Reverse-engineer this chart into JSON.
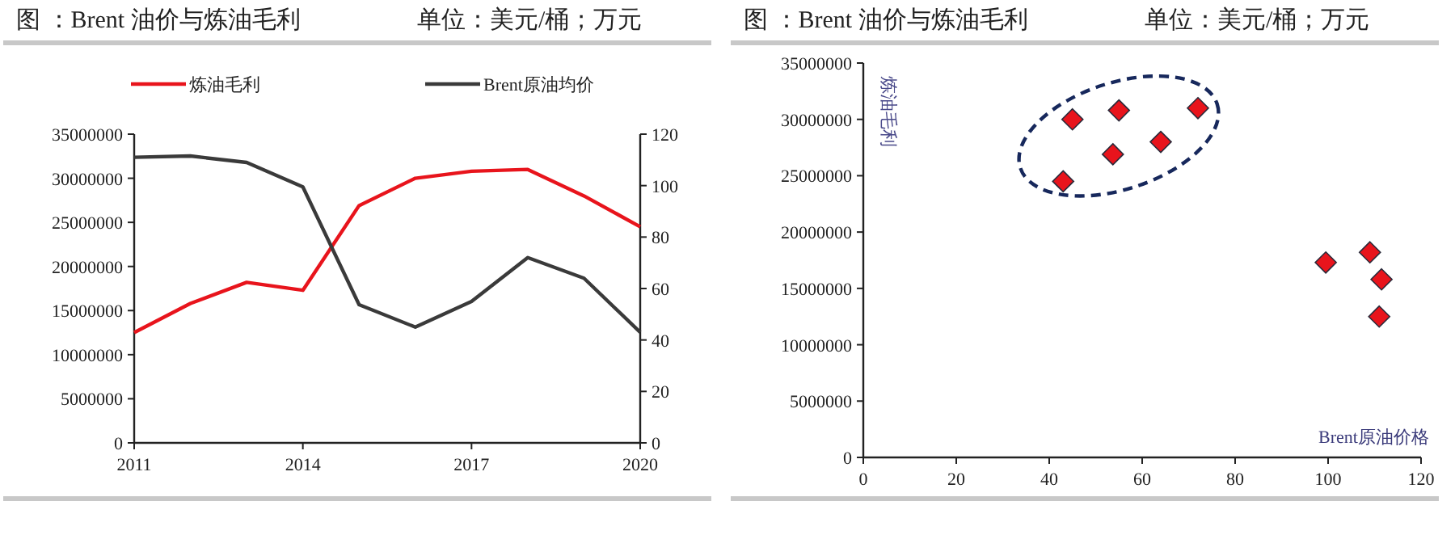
{
  "chart_data": [
    {
      "type": "line",
      "title": "图   ：Brent 油价与炼油毛利",
      "subtitle": "单位：美元/桶；万元",
      "x": [
        2011,
        2012,
        2013,
        2014,
        2015,
        2016,
        2017,
        2018,
        2019,
        2020
      ],
      "xlim": [
        2011,
        2020
      ],
      "xticks": [
        2011,
        2014,
        2017,
        2020
      ],
      "ylim": [
        0,
        35000000
      ],
      "yticks": [
        0,
        5000000,
        10000000,
        15000000,
        20000000,
        25000000,
        30000000,
        35000000
      ],
      "y2lim": [
        0,
        120
      ],
      "y2ticks": [
        0,
        20,
        40,
        60,
        80,
        100,
        120
      ],
      "legend": "top",
      "marker": "none",
      "series": [
        {
          "name": "炼油毛利",
          "color": "#e8141c",
          "values": [
            12500000,
            15800000,
            18200000,
            17300000,
            26900000,
            30000000,
            30800000,
            31000000,
            28000000,
            24500000
          ]
        },
        {
          "name": "Brent原油均价",
          "color": "#3a3a3a",
          "axis": "y2",
          "values": [
            111,
            111.5,
            109,
            99.5,
            53.7,
            45,
            55,
            72,
            64,
            43
          ]
        }
      ]
    },
    {
      "type": "scatter",
      "title": "图   ：Brent 油价与炼油毛利",
      "subtitle": "单位：美元/桶；万元",
      "xlabel": "Brent原油价格",
      "ylabel": "炼油毛利",
      "x": [
        111,
        111.5,
        109,
        99.5,
        53.7,
        45,
        55,
        72,
        64,
        43
      ],
      "values": [
        12500000,
        15800000,
        18200000,
        17300000,
        26900000,
        30000000,
        30800000,
        31000000,
        28000000,
        24500000
      ],
      "color": "#e8141c",
      "marker": "diamond",
      "xlim": [
        0,
        120
      ],
      "xticks": [
        0,
        20,
        40,
        60,
        80,
        100,
        120
      ],
      "ylim": [
        0,
        35000000
      ],
      "yticks": [
        0,
        5000000,
        10000000,
        15000000,
        20000000,
        25000000,
        30000000,
        35000000
      ]
    }
  ]
}
